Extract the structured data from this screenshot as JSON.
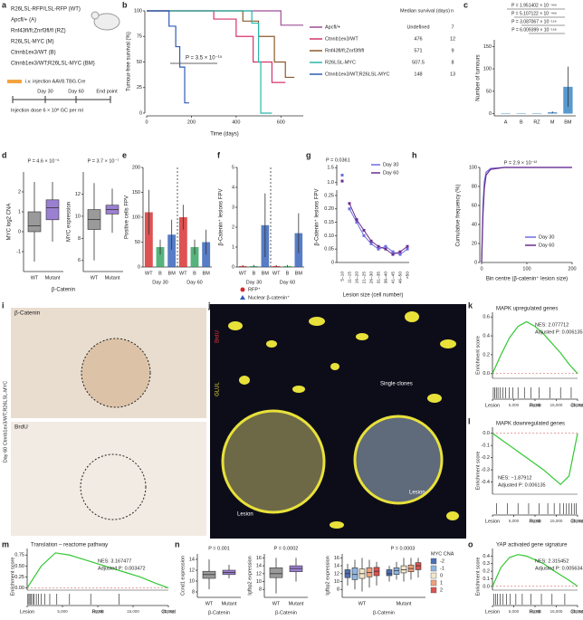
{
  "figure": {
    "panel_labels": [
      "a",
      "b",
      "c",
      "d",
      "e",
      "f",
      "g",
      "h",
      "i",
      "j",
      "k",
      "l",
      "m",
      "n",
      "o"
    ],
    "a": {
      "genotypes": [
        "R26LSL-RFP/LSL-RFP (WT)",
        "Apcfl/+ (A)",
        "Rnf43fl/fl;Znrf3fl/fl (RZ)",
        "R26LSL-MYC (M)",
        "Ctnnb1ex3/WT (B)",
        "Ctnnb1ex3/WT;R26LSL-MYC (BM)"
      ],
      "injection": "i.v. injection AAV8.TBG.Cre",
      "timeline": [
        "Day 30",
        "Day 60",
        "End point"
      ],
      "dose": "Injection dose 6 × 10⁸ GC per ml"
    },
    "b": {
      "y_label": "Tumour-free survival (%)",
      "x_label": "Time (days)",
      "p_value": "P = 3.5 × 10⁻¹⁵",
      "xlim": [
        0,
        700
      ],
      "xticks": [
        0,
        200,
        400,
        600
      ],
      "ylim": [
        0,
        100
      ],
      "yticks": [
        0,
        25,
        50,
        75,
        100
      ],
      "table_header": [
        "Median survival (days)",
        "n"
      ],
      "series": [
        {
          "name": "Apcfl/+",
          "color": "#9b4f96",
          "x": [
            0,
            600,
            600,
            700
          ],
          "y": [
            100,
            100,
            86,
            86
          ],
          "median": "Undefined",
          "n": 7
        },
        {
          "name": "Ctnnb1ex3/WT",
          "color": "#d6336c",
          "x": [
            0,
            300,
            300,
            400,
            400,
            476,
            476,
            560,
            560,
            620
          ],
          "y": [
            100,
            100,
            92,
            92,
            75,
            75,
            50,
            50,
            30,
            30
          ],
          "median": 476,
          "n": 12
        },
        {
          "name": "Rnf43fl/fl;Znrf3fl/fl",
          "color": "#8b5a2b",
          "x": [
            0,
            430,
            430,
            500,
            500,
            571,
            571,
            620,
            620,
            660
          ],
          "y": [
            100,
            100,
            90,
            90,
            75,
            75,
            50,
            50,
            35,
            35
          ],
          "median": 571,
          "n": 9
        },
        {
          "name": "R26LSL-MYC",
          "color": "#2ab7a9",
          "x": [
            0,
            470,
            470,
            500,
            500,
            510,
            510,
            560
          ],
          "y": [
            100,
            100,
            88,
            88,
            50,
            50,
            0,
            0
          ],
          "median": 507.5,
          "n": 8
        },
        {
          "name": "Ctnnb1ex3/WT;R26LSL-MYC",
          "color": "#2e5cb8",
          "x": [
            0,
            100,
            100,
            130,
            130,
            148,
            148,
            170,
            170,
            190
          ],
          "y": [
            100,
            100,
            85,
            85,
            65,
            65,
            45,
            45,
            10,
            10
          ],
          "median": 148,
          "n": 13
        }
      ]
    },
    "c": {
      "y_label": "Number of tumours",
      "categories": [
        "A",
        "B",
        "RZ",
        "M",
        "BM"
      ],
      "values": [
        1,
        1,
        1,
        3,
        60
      ],
      "errors": [
        0,
        0,
        0,
        2,
        45
      ],
      "color": "#3b87c8",
      "ylim": [
        -5,
        165
      ],
      "yticks": [
        0,
        50,
        100,
        150
      ],
      "p_values": [
        "P = 1.951402 × 10⁻⁴⁶⁶",
        "P = 5.107122 × 10⁻⁴⁶⁶",
        "P = 3.087067 × 10⁻¹⁹⁹",
        "P = 6.009399 × 10⁻¹⁶⁸"
      ]
    },
    "d": {
      "categories": [
        "WT",
        "Mutant"
      ],
      "group_label": "β-Catenin",
      "colors": [
        "#9a9a9a",
        "#9b7fd1"
      ],
      "plots": [
        {
          "y_label": "MYC log2 CNA",
          "p_value": "P = 4.6 × 10⁻⁶",
          "ylim": [
            -2,
            3
          ],
          "yticks": [
            -1,
            0,
            1,
            2
          ],
          "boxes": [
            [
              -1.5,
              0,
              0.3,
              1,
              2.5
            ],
            [
              -0.5,
              0.6,
              1.2,
              1.6,
              2.5
            ]
          ]
        },
        {
          "y_label": "MYC expression",
          "p_value": "P = 3.7 × 10⁻⁷",
          "ylim": [
            5,
            14
          ],
          "yticks": [
            6,
            8,
            10,
            12
          ],
          "boxes": [
            [
              6,
              8.8,
              9.7,
              10.6,
              13
            ],
            [
              8.5,
              10.2,
              10.6,
              11,
              12.5
            ]
          ]
        }
      ]
    },
    "e": {
      "y_label": "Positive cells FPV",
      "ylim": [
        0,
        200
      ],
      "yticks": [
        0,
        50,
        100,
        150,
        200
      ],
      "categories": [
        "WT",
        "B",
        "BM"
      ],
      "colors": [
        "#d62728",
        "#2ca05a",
        "#2e5cb8"
      ],
      "groups": [
        "Day 30",
        "Day 60"
      ],
      "values": [
        [
          110,
          40,
          65
        ],
        [
          100,
          40,
          50
        ]
      ],
      "errors": [
        [
          45,
          15,
          30
        ],
        [
          25,
          15,
          25
        ]
      ]
    },
    "f": {
      "y_label": "β-Catenin⁺ lesions FPV",
      "ylim": [
        0,
        5
      ],
      "yticks": [
        0,
        1,
        2,
        3,
        4,
        5
      ],
      "values": [
        [
          0.05,
          0.05,
          2.1
        ],
        [
          0.05,
          0.05,
          1.7
        ]
      ],
      "errors": [
        [
          0.05,
          0.05,
          1.6
        ],
        [
          0.05,
          0.05,
          1.0
        ]
      ],
      "legend": [
        "RFP⁺",
        "Nuclear β-catenin⁺"
      ]
    },
    "g": {
      "p_value": "P = 0.0361",
      "y_label": "β-Catenin⁺ lesions FPV",
      "x_label": "Lesion size (cell number)",
      "categories": [
        "5–10",
        "11–15",
        "16–20",
        "21–25",
        "26–30",
        "31–35",
        "36–40",
        "41–45",
        "46–50",
        ">50"
      ],
      "ylim_upper": [
        0.9,
        1.6
      ],
      "yticks_upper": [
        {
          "value": 1,
          "label": "1.0"
        },
        1.5
      ],
      "ylim": [
        0,
        0.27
      ],
      "yticks": [
        0,
        0.05,
        {
          "value": 0.1,
          "label": "0.10"
        },
        0.15,
        {
          "value": 0.2,
          "label": "0.20"
        },
        0.25
      ],
      "series": [
        {
          "name": "Day 30",
          "color": "#6d6de0",
          "values": [
            1.25,
            0.2,
            0.15,
            0.1,
            0.07,
            0.05,
            0.06,
            0.04,
            0.03,
            0.05
          ]
        },
        {
          "name": "Day 60",
          "color": "#6a2d8f",
          "values": [
            1.05,
            0.22,
            0.16,
            0.12,
            0.08,
            0.06,
            0.05,
            0.03,
            0.04,
            0.06
          ]
        }
      ]
    },
    "h": {
      "p_value": "P = 2.9 × 10⁻¹²",
      "y_label": "Cumulative frequency (%)",
      "x_label": "Bin centre (β-catenin⁺ lesion size)",
      "xlim": [
        0,
        200
      ],
      "xticks": [
        0,
        100,
        200
      ],
      "ylim": [
        0,
        100
      ],
      "yticks": [
        0,
        20,
        40,
        60,
        80,
        100
      ],
      "x": [
        0,
        3,
        6,
        10,
        20,
        50,
        100,
        200
      ],
      "series": [
        {
          "name": "Day 30",
          "color": "#6d6de0",
          "values": [
            0,
            60,
            85,
            95,
            99,
            100,
            100,
            100
          ]
        },
        {
          "name": "Day 60",
          "color": "#6a2d8f",
          "values": [
            0,
            50,
            78,
            92,
            98,
            100,
            100,
            100
          ]
        }
      ]
    },
    "i": {
      "stains": [
        "β-Catenin",
        "BrdU"
      ],
      "side_label": "Day 60 Ctnnb1ex3/WT;R26LSL-MYC"
    },
    "j": {
      "channels": [
        "BrdU",
        "GLUL"
      ],
      "annotations": [
        "Single clones",
        "Lesion",
        "Lesion"
      ]
    },
    "gsea": {
      "y_label": "Enrichment score",
      "rank_labels": [
        "Lesion",
        "Rank",
        "Clonal"
      ],
      "xlim": [
        0,
        20000
      ],
      "xticks": [
        0,
        {
          "value": 5000,
          "label": "5,000"
        },
        {
          "value": 10000,
          "label": "10,000"
        },
        {
          "value": 15000,
          "label": "15,000"
        },
        {
          "value": 20000,
          "label": "20,000"
        }
      ],
      "rank": [
        0,
        2000,
        4000,
        6000,
        8000,
        10000,
        12000,
        14000,
        16000,
        18000,
        20000
      ],
      "color": "#32c832",
      "plots": [
        {
          "title": "MAPK upregulated genes",
          "nes": "NES: 2.077712",
          "p_adj": "Adjusted P: 0.006135",
          "ylim": [
            -0.05,
            0.65
          ],
          "yticks": [
            {
              "value": 0,
              "label": "0.0"
            },
            0.2,
            0.4,
            0.6
          ],
          "values": [
            0,
            0.2,
            0.38,
            0.5,
            0.55,
            0.5,
            0.42,
            0.32,
            0.22,
            0.1,
            0
          ],
          "hits": [
            200,
            500,
            900,
            1300,
            1800,
            2400,
            3100,
            3900,
            4800,
            6000,
            7500,
            9000,
            11000,
            13500,
            16000,
            18500
          ]
        },
        {
          "title": "MAPK downregulated genes",
          "nes": "NES: −1.87912",
          "p_adj": "Adjusted P: 0.006135",
          "ylim": [
            -0.5,
            0.05
          ],
          "yticks": [
            {
              "value": 0,
              "label": "0.0"
            },
            -0.1,
            -0.2,
            -0.3,
            -0.4
          ],
          "values": [
            0,
            -0.05,
            -0.1,
            -0.15,
            -0.2,
            -0.25,
            -0.3,
            -0.36,
            -0.42,
            -0.35,
            0
          ],
          "hits": [
            1000,
            3500,
            6000,
            8500,
            11000,
            13000,
            14500,
            15800,
            16700,
            17400,
            18000,
            18600,
            19200,
            19700
          ]
        },
        {
          "title": "Translation – reactome pathway",
          "nes": "NES: 3.167477",
          "p_adj": "Adjusted P: 0.003472",
          "ylim": [
            -0.05,
            0.9
          ],
          "yticks": [
            {
              "value": 0,
              "label": "0.00"
            },
            0.25,
            {
              "value": 0.5,
              "label": "0.50"
            },
            0.75
          ],
          "values": [
            0,
            0.5,
            0.8,
            0.75,
            0.65,
            0.55,
            0.45,
            0.35,
            0.25,
            0.12,
            0
          ],
          "hits": [
            100,
            250,
            400,
            600,
            800,
            1000,
            1300,
            1600,
            2000,
            2500,
            3200,
            4200,
            6000,
            9000,
            13000
          ]
        },
        {
          "title": "YAP activated gene signature",
          "nes": "NES: 2.315452",
          "p_adj": "Adjusted P: 0.005634",
          "ylim": [
            -0.05,
            0.5
          ],
          "yticks": [
            {
              "value": 0,
              "label": "0.0"
            },
            0.1,
            0.2,
            0.3,
            0.4
          ],
          "values": [
            0,
            0.25,
            0.38,
            0.42,
            0.4,
            0.35,
            0.3,
            0.22,
            0.15,
            0.08,
            0
          ],
          "hits": [
            300,
            700,
            1200,
            1800,
            2500,
            3300,
            4200,
            5500,
            7000,
            9000,
            11500,
            14000,
            17000
          ]
        }
      ]
    },
    "n": {
      "categories": [
        "WT",
        "Mutant"
      ],
      "group_label": "β-Catenin",
      "colors": [
        "#9a9a9a",
        "#9b7fd1"
      ],
      "plots": [
        {
          "y_label": "Ccnd1 expression",
          "p_value": "P = 0.001",
          "ylim": [
            7,
            15
          ],
          "yticks": [
            8,
            10,
            12,
            14
          ],
          "boxes": [
            [
              8.5,
              10.5,
              11.2,
              11.8,
              14
            ],
            [
              10.5,
              11.2,
              11.6,
              12,
              13
            ]
          ]
        },
        {
          "y_label": "Igfbp2 expression",
          "p_value": "P = 0.0002",
          "ylim": [
            6,
            17
          ],
          "yticks": [
            8,
            10,
            12,
            14,
            16
          ],
          "boxes": [
            [
              7,
              11,
              12,
              13.5,
              16
            ],
            [
              10,
              12.5,
              13.3,
              14,
              16
            ]
          ]
        }
      ],
      "cna": {
        "y_label": "Igfbp2 expression",
        "p_value": "P = 0.0003",
        "legend_title": "MYC CNA",
        "levels": [
          -2,
          -1,
          0,
          1,
          2
        ],
        "colors": [
          "#4a6fb5",
          "#8fb3df",
          "#f2e6c9",
          "#f0a07a",
          "#d9534f"
        ],
        "ylim": [
          6,
          17
        ],
        "yticks": [
          8,
          10,
          12,
          14,
          16
        ],
        "boxes": [
          [
            [
              9,
              11,
              12,
              13,
              14.5
            ],
            [
              8,
              10.5,
              11.8,
              13.5,
              15.5
            ],
            [
              7.5,
              10.8,
              12,
              13.2,
              16
            ],
            [
              8.5,
              11.2,
              12.3,
              13.5,
              15.5
            ],
            [
              9,
              11.5,
              12.6,
              13.6,
              15
            ]
          ],
          [
            [
              10,
              11.5,
              12,
              13,
              14
            ],
            [
              10.5,
              11.8,
              12.8,
              13.5,
              15
            ],
            [
              10,
              12.2,
              13,
              14,
              16
            ],
            [
              10.5,
              12.5,
              13.3,
              14.2,
              16
            ],
            [
              11,
              13,
              14,
              14.8,
              16
            ]
          ]
        ]
      }
    }
  }
}
